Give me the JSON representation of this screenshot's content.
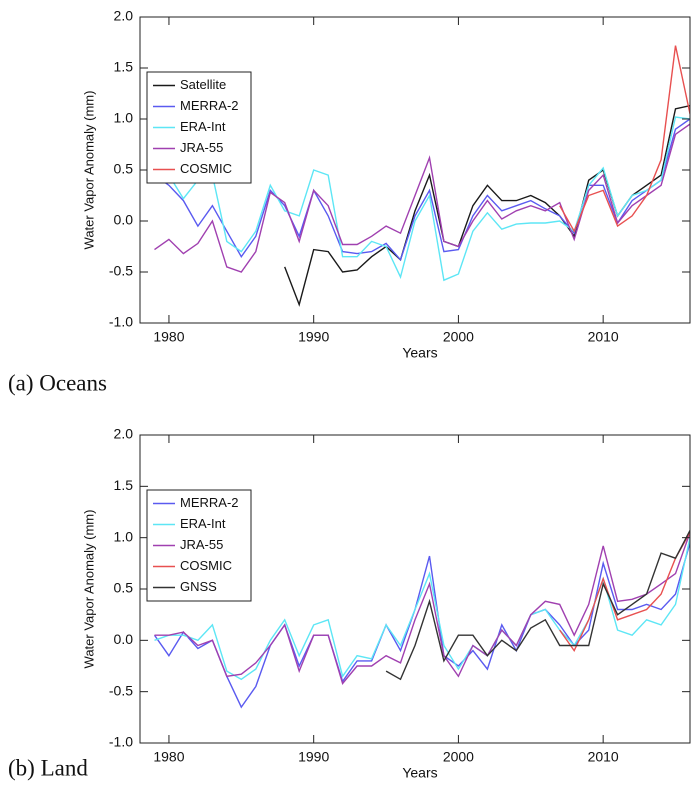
{
  "chart_data": [
    {
      "type": "line",
      "caption": "(a)  Oceans",
      "ylabel": "Water Vapor Anomaly (mm)",
      "xlabel": "Years",
      "x": [
        1979,
        1980,
        1981,
        1982,
        1983,
        1984,
        1985,
        1986,
        1987,
        1988,
        1989,
        1990,
        1991,
        1992,
        1993,
        1994,
        1995,
        1996,
        1997,
        1998,
        1999,
        2000,
        2001,
        2002,
        2003,
        2004,
        2005,
        2006,
        2007,
        2008,
        2009,
        2010,
        2011,
        2012,
        2013,
        2014,
        2015,
        2016
      ],
      "xlim": [
        1978,
        2016
      ],
      "xticks": [
        1980,
        1990,
        2000,
        2010
      ],
      "ylim": [
        -1,
        2
      ],
      "yticks": [
        {
          "value": -1,
          "label": "-1.0"
        },
        -0.5,
        {
          "value": 0,
          "label": "0.0"
        },
        0.5,
        {
          "value": 1,
          "label": "1.0"
        },
        1.5,
        {
          "value": 2,
          "label": "2.0"
        }
      ],
      "legend": "upper left",
      "series": [
        {
          "name": "Satellite",
          "color": "#1a1a1a",
          "values": [
            null,
            null,
            null,
            null,
            null,
            null,
            null,
            null,
            null,
            -0.45,
            -0.82,
            -0.28,
            -0.3,
            -0.5,
            -0.48,
            -0.35,
            -0.25,
            -0.38,
            0.1,
            0.45,
            -0.2,
            -0.25,
            0.15,
            0.35,
            0.2,
            0.2,
            0.25,
            0.18,
            0.05,
            -0.15,
            0.4,
            0.5,
            0.05,
            0.25,
            0.35,
            0.45,
            1.1,
            1.13
          ]
        },
        {
          "name": "MERRA-2",
          "color": "#5a5af0",
          "values": [
            0.45,
            0.35,
            0.2,
            -0.05,
            0.15,
            -0.1,
            -0.35,
            -0.15,
            0.3,
            0.15,
            -0.15,
            0.3,
            0.05,
            -0.3,
            -0.32,
            -0.3,
            -0.22,
            -0.38,
            0.05,
            0.3,
            -0.3,
            -0.28,
            0.05,
            0.25,
            0.1,
            0.15,
            0.2,
            0.12,
            0.05,
            -0.12,
            0.35,
            0.35,
            -0.02,
            0.2,
            0.3,
            0.4,
            0.9,
            1.0
          ]
        },
        {
          "name": "ERA-Int",
          "color": "#5de6f5",
          "values": [
            0.4,
            0.45,
            0.22,
            0.4,
            0.45,
            -0.2,
            -0.3,
            -0.1,
            0.35,
            0.1,
            0.05,
            0.5,
            0.45,
            -0.35,
            -0.35,
            -0.2,
            -0.25,
            -0.55,
            0.0,
            0.25,
            -0.58,
            -0.52,
            -0.1,
            0.08,
            -0.08,
            -0.03,
            -0.02,
            -0.02,
            0.0,
            -0.1,
            0.35,
            0.52,
            0.05,
            0.25,
            0.3,
            0.4,
            1.02,
            1.0
          ]
        },
        {
          "name": "JRA-55",
          "color": "#a040b0",
          "values": [
            -0.28,
            -0.18,
            -0.32,
            -0.22,
            0.0,
            -0.45,
            -0.5,
            -0.3,
            0.28,
            0.18,
            -0.2,
            0.3,
            0.15,
            -0.23,
            -0.23,
            -0.15,
            -0.05,
            -0.12,
            0.25,
            0.62,
            -0.2,
            -0.25,
            0.0,
            0.2,
            0.02,
            0.1,
            0.15,
            0.1,
            0.18,
            -0.18,
            0.3,
            0.45,
            -0.02,
            0.15,
            0.25,
            0.35,
            0.85,
            0.95
          ]
        },
        {
          "name": "COSMIC",
          "color": "#e85050",
          "values": [
            null,
            null,
            null,
            null,
            null,
            null,
            null,
            null,
            null,
            null,
            null,
            null,
            null,
            null,
            null,
            null,
            null,
            null,
            null,
            null,
            null,
            null,
            null,
            null,
            null,
            null,
            null,
            null,
            0.15,
            -0.1,
            0.25,
            0.3,
            -0.05,
            0.05,
            0.25,
            0.6,
            1.72,
            1.05
          ]
        }
      ]
    },
    {
      "type": "line",
      "caption": "(b)  Land",
      "ylabel": "Water Vapor Anomaly (mm)",
      "xlabel": "Years",
      "x": [
        1979,
        1980,
        1981,
        1982,
        1983,
        1984,
        1985,
        1986,
        1987,
        1988,
        1989,
        1990,
        1991,
        1992,
        1993,
        1994,
        1995,
        1996,
        1997,
        1998,
        1999,
        2000,
        2001,
        2002,
        2003,
        2004,
        2005,
        2006,
        2007,
        2008,
        2009,
        2010,
        2011,
        2012,
        2013,
        2014,
        2015,
        2016
      ],
      "xlim": [
        1978,
        2016
      ],
      "xticks": [
        1980,
        1990,
        2000,
        2010
      ],
      "ylim": [
        -1,
        2
      ],
      "yticks": [
        {
          "value": -1,
          "label": "-1.0"
        },
        -0.5,
        {
          "value": 0,
          "label": "0.0"
        },
        0.5,
        {
          "value": 1,
          "label": "1.0"
        },
        1.5,
        {
          "value": 2,
          "label": "2.0"
        }
      ],
      "legend": "upper left",
      "series": [
        {
          "name": "MERRA-2",
          "color": "#5a5af0",
          "values": [
            0.05,
            -0.15,
            0.08,
            -0.08,
            0.0,
            -0.35,
            -0.65,
            -0.45,
            -0.05,
            0.15,
            -0.25,
            0.05,
            0.05,
            -0.4,
            -0.2,
            -0.2,
            0.15,
            -0.1,
            0.3,
            0.82,
            -0.15,
            -0.25,
            -0.1,
            -0.28,
            0.15,
            -0.1,
            0.25,
            0.3,
            0.15,
            -0.05,
            0.1,
            0.75,
            0.3,
            0.3,
            0.35,
            0.3,
            0.45,
            0.95
          ]
        },
        {
          "name": "ERA-Int",
          "color": "#5de6f5",
          "values": [
            0.0,
            0.05,
            0.05,
            0.0,
            0.15,
            -0.3,
            -0.38,
            -0.28,
            0.0,
            0.2,
            -0.15,
            0.15,
            0.2,
            -0.35,
            -0.15,
            -0.18,
            0.15,
            -0.05,
            0.3,
            0.65,
            -0.05,
            -0.28,
            -0.05,
            -0.15,
            0.1,
            -0.05,
            0.25,
            0.3,
            0.1,
            -0.05,
            0.2,
            0.6,
            0.1,
            0.05,
            0.2,
            0.15,
            0.35,
            1.0
          ]
        },
        {
          "name": "JRA-55",
          "color": "#a040b0",
          "values": [
            0.05,
            0.05,
            0.08,
            -0.05,
            0.0,
            -0.35,
            -0.33,
            -0.22,
            -0.05,
            0.15,
            -0.3,
            0.05,
            0.05,
            -0.42,
            -0.25,
            -0.25,
            -0.15,
            -0.22,
            0.2,
            0.55,
            -0.15,
            -0.35,
            -0.05,
            -0.15,
            0.1,
            -0.05,
            0.25,
            0.38,
            0.35,
            0.05,
            0.35,
            0.92,
            0.38,
            0.4,
            0.45,
            0.55,
            0.65,
            1.05
          ]
        },
        {
          "name": "COSMIC",
          "color": "#e85050",
          "values": [
            null,
            null,
            null,
            null,
            null,
            null,
            null,
            null,
            null,
            null,
            null,
            null,
            null,
            null,
            null,
            null,
            null,
            null,
            null,
            null,
            null,
            null,
            null,
            null,
            null,
            null,
            null,
            null,
            0.1,
            -0.1,
            0.2,
            0.6,
            0.2,
            0.25,
            0.3,
            0.45,
            0.8,
            1.05
          ]
        },
        {
          "name": "GNSS",
          "color": "#333333",
          "values": [
            null,
            null,
            null,
            null,
            null,
            null,
            null,
            null,
            null,
            null,
            null,
            null,
            null,
            null,
            null,
            null,
            -0.3,
            -0.38,
            -0.05,
            0.38,
            -0.2,
            0.05,
            0.05,
            -0.15,
            0.0,
            -0.1,
            0.12,
            0.2,
            -0.05,
            -0.05,
            -0.05,
            0.55,
            0.25,
            0.35,
            0.45,
            0.85,
            0.8,
            1.07
          ]
        }
      ]
    }
  ]
}
